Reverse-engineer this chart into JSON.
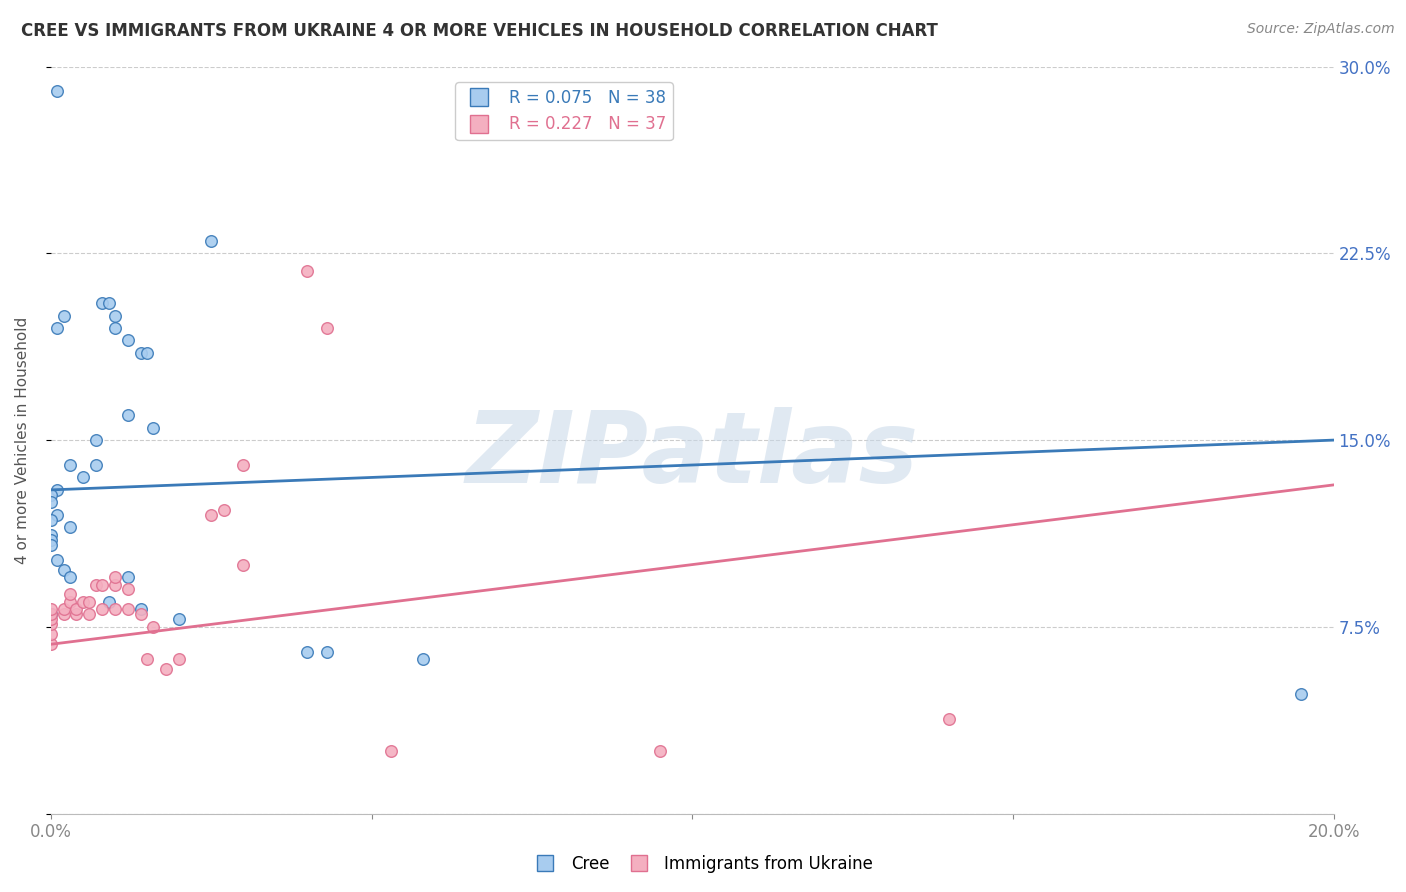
{
  "title": "CREE VS IMMIGRANTS FROM UKRAINE 4 OR MORE VEHICLES IN HOUSEHOLD CORRELATION CHART",
  "source": "Source: ZipAtlas.com",
  "ylabel": "4 or more Vehicles in Household",
  "xlim": [
    0.0,
    0.2
  ],
  "ylim": [
    0.0,
    0.3
  ],
  "xticks": [
    0.0,
    0.05,
    0.1,
    0.15,
    0.2
  ],
  "yticks": [
    0.0,
    0.075,
    0.15,
    0.225,
    0.3
  ],
  "xtick_labels": [
    "0.0%",
    "",
    "",
    "",
    "20.0%"
  ],
  "ytick_labels_right": [
    "",
    "7.5%",
    "15.0%",
    "22.5%",
    "30.0%"
  ],
  "legend_entries": [
    {
      "label": "Cree",
      "R": "0.075",
      "N": "38",
      "color": "#6baed6"
    },
    {
      "label": "Immigrants from Ukraine",
      "R": "0.227",
      "N": "37",
      "color": "#f4a0b0"
    }
  ],
  "cree_scatter": [
    [
      0.001,
      0.29
    ],
    [
      0.007,
      0.14
    ],
    [
      0.025,
      0.23
    ],
    [
      0.001,
      0.195
    ],
    [
      0.002,
      0.2
    ],
    [
      0.008,
      0.205
    ],
    [
      0.009,
      0.205
    ],
    [
      0.01,
      0.2
    ],
    [
      0.01,
      0.195
    ],
    [
      0.012,
      0.19
    ],
    [
      0.014,
      0.185
    ],
    [
      0.015,
      0.185
    ],
    [
      0.012,
      0.16
    ],
    [
      0.016,
      0.155
    ],
    [
      0.007,
      0.15
    ],
    [
      0.003,
      0.14
    ],
    [
      0.005,
      0.135
    ],
    [
      0.001,
      0.13
    ],
    [
      0.0,
      0.128
    ],
    [
      0.0,
      0.125
    ],
    [
      0.001,
      0.12
    ],
    [
      0.0,
      0.118
    ],
    [
      0.003,
      0.115
    ],
    [
      0.0,
      0.112
    ],
    [
      0.0,
      0.11
    ],
    [
      0.0,
      0.108
    ],
    [
      0.001,
      0.102
    ],
    [
      0.002,
      0.098
    ],
    [
      0.003,
      0.095
    ],
    [
      0.012,
      0.095
    ],
    [
      0.009,
      0.085
    ],
    [
      0.014,
      0.082
    ],
    [
      0.0,
      0.08
    ],
    [
      0.02,
      0.078
    ],
    [
      0.04,
      0.065
    ],
    [
      0.043,
      0.065
    ],
    [
      0.058,
      0.062
    ],
    [
      0.195,
      0.048
    ]
  ],
  "ukraine_scatter": [
    [
      0.0,
      0.068
    ],
    [
      0.0,
      0.072
    ],
    [
      0.0,
      0.076
    ],
    [
      0.0,
      0.078
    ],
    [
      0.0,
      0.08
    ],
    [
      0.0,
      0.082
    ],
    [
      0.002,
      0.08
    ],
    [
      0.002,
      0.082
    ],
    [
      0.003,
      0.085
    ],
    [
      0.003,
      0.088
    ],
    [
      0.004,
      0.08
    ],
    [
      0.004,
      0.082
    ],
    [
      0.005,
      0.085
    ],
    [
      0.006,
      0.08
    ],
    [
      0.006,
      0.085
    ],
    [
      0.007,
      0.092
    ],
    [
      0.008,
      0.082
    ],
    [
      0.008,
      0.092
    ],
    [
      0.01,
      0.092
    ],
    [
      0.01,
      0.095
    ],
    [
      0.01,
      0.082
    ],
    [
      0.012,
      0.082
    ],
    [
      0.012,
      0.09
    ],
    [
      0.014,
      0.08
    ],
    [
      0.015,
      0.062
    ],
    [
      0.016,
      0.075
    ],
    [
      0.018,
      0.058
    ],
    [
      0.02,
      0.062
    ],
    [
      0.025,
      0.12
    ],
    [
      0.027,
      0.122
    ],
    [
      0.03,
      0.1
    ],
    [
      0.03,
      0.14
    ],
    [
      0.04,
      0.218
    ],
    [
      0.043,
      0.195
    ],
    [
      0.053,
      0.025
    ],
    [
      0.095,
      0.025
    ],
    [
      0.14,
      0.038
    ]
  ],
  "cree_line_color": "#3a7ab8",
  "ukraine_line_color": "#e07090",
  "scatter_color_cree": "#a8ccef",
  "scatter_color_ukraine": "#f4afc0",
  "scatter_size": 70,
  "watermark": "ZIPatlas",
  "background_color": "#ffffff",
  "grid_color": "#cccccc"
}
